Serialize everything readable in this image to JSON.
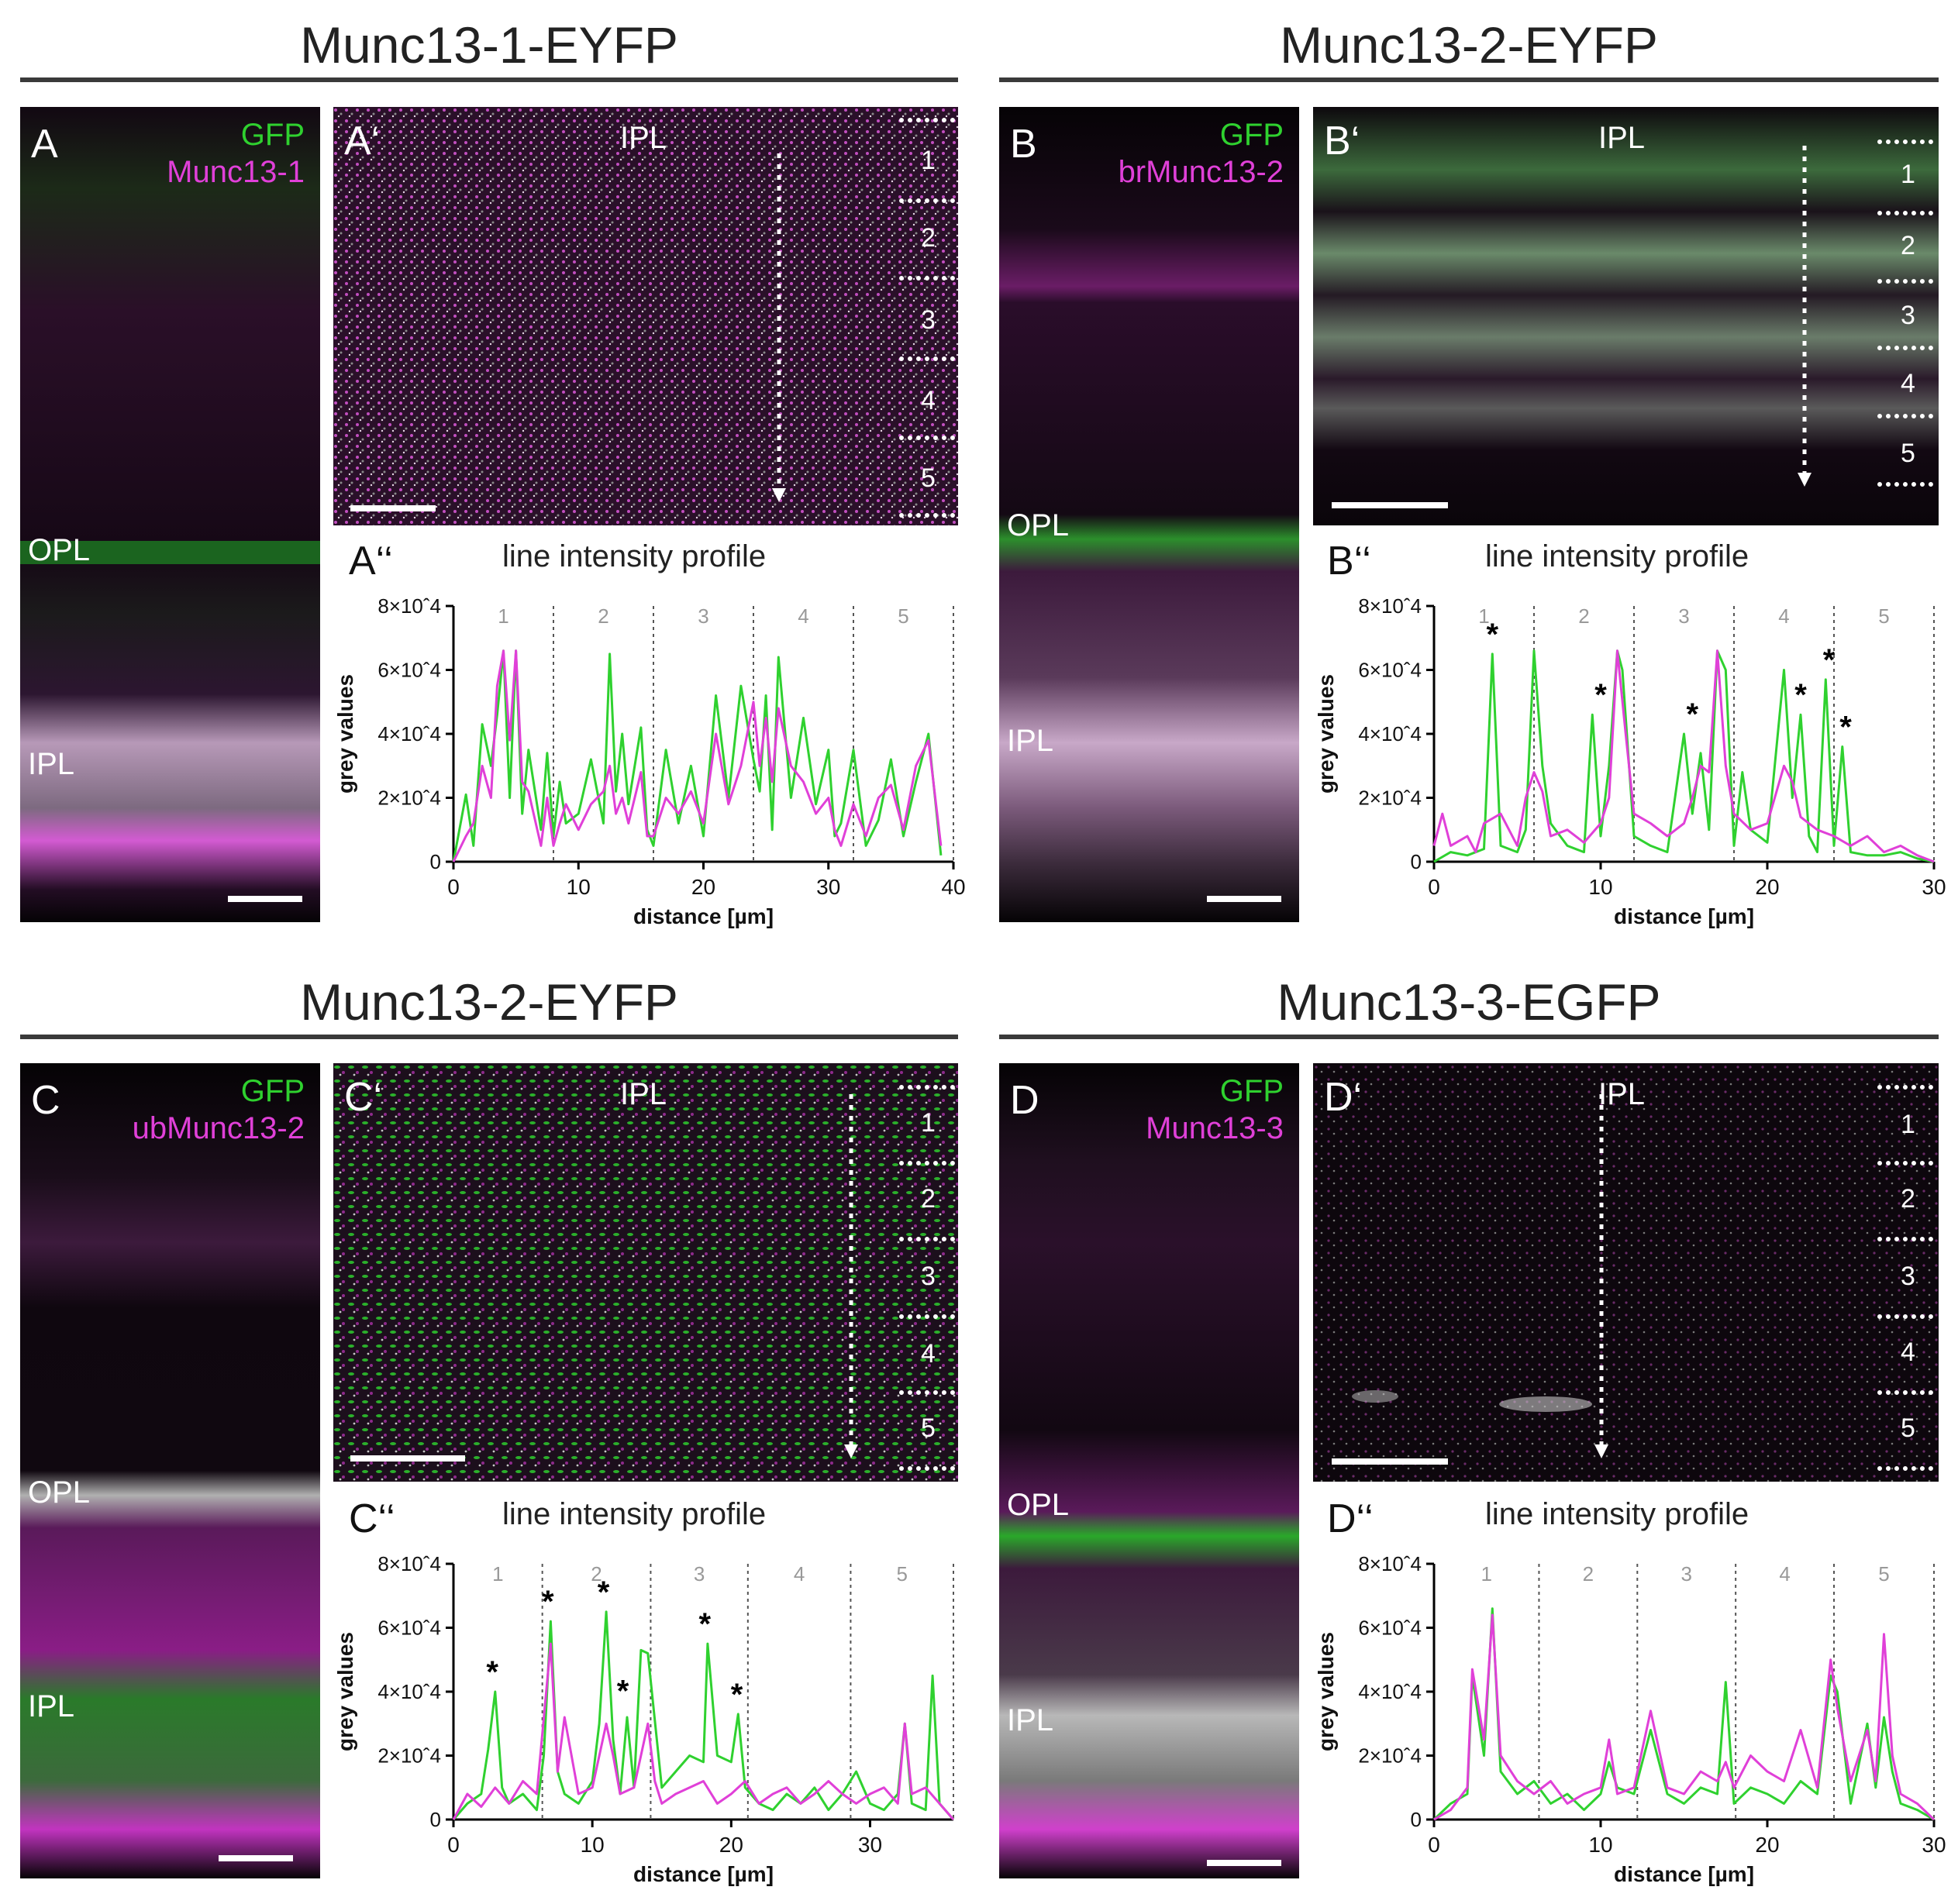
{
  "sections": {
    "top_left": "Munc13-1-EYFP",
    "top_right": "Munc13-2-EYFP",
    "bottom_left": "Munc13-2-EYFP",
    "bottom_right": "Munc13-3-EGFP"
  },
  "panels": {
    "A": {
      "label": "A",
      "green": "GFP",
      "magenta": "Munc13-1",
      "opl": "OPL",
      "ipl": "IPL"
    },
    "A1": {
      "label": "A‘",
      "ipl": "IPL",
      "bands": [
        "1",
        "2",
        "3",
        "4",
        "5"
      ]
    },
    "A2": {
      "label": "A‘‘",
      "title": "line intensity profile"
    },
    "B": {
      "label": "B",
      "green": "GFP",
      "magenta": "brMunc13-2",
      "opl": "OPL",
      "ipl": "IPL"
    },
    "B1": {
      "label": "B‘",
      "ipl": "IPL",
      "bands": [
        "1",
        "2",
        "3",
        "4",
        "5"
      ]
    },
    "B2": {
      "label": "B‘‘",
      "title": "line intensity profile"
    },
    "C": {
      "label": "C",
      "green": "GFP",
      "magenta": "ubMunc13-2",
      "opl": "OPL",
      "ipl": "IPL"
    },
    "C1": {
      "label": "C‘",
      "ipl": "IPL",
      "bands": [
        "1",
        "2",
        "3",
        "4",
        "5"
      ]
    },
    "C2": {
      "label": "C‘‘",
      "title": "line intensity profile"
    },
    "D": {
      "label": "D",
      "green": "GFP",
      "magenta": "Munc13-3",
      "opl": "OPL",
      "ipl": "IPL"
    },
    "D1": {
      "label": "D‘",
      "ipl": "IPL",
      "bands": [
        "1",
        "2",
        "3",
        "4",
        "5"
      ]
    },
    "D2": {
      "label": "D‘‘",
      "title": "line intensity profile"
    }
  },
  "colors": {
    "green": "#2fd12f",
    "magenta": "#e040d8",
    "grid": "#555555",
    "band_label": "#999999"
  },
  "chart_data": [
    {
      "id": "A2",
      "type": "line",
      "xlabel": "distance [µm]",
      "ylabel": "grey values",
      "xlim": [
        0,
        40
      ],
      "ylim": [
        0,
        80000
      ],
      "xticks": [
        0,
        10,
        20,
        30,
        40
      ],
      "yticks": [
        0,
        20000,
        40000,
        60000,
        80000
      ],
      "ytick_labels": [
        "0",
        "2×10ˆ4",
        "4×10ˆ4",
        "6×10ˆ4",
        "8×10ˆ4"
      ],
      "bands": [
        "1",
        "2",
        "3",
        "4",
        "5"
      ],
      "band_bounds": [
        8,
        16,
        24,
        32,
        40
      ],
      "series": [
        {
          "color": "green",
          "x": [
            0,
            1,
            1.6,
            2.3,
            3,
            3.5,
            4,
            4.5,
            5,
            5.5,
            6,
            7,
            7.5,
            8,
            8.5,
            9,
            10,
            11,
            12,
            12.5,
            13,
            13.5,
            14,
            15,
            15.5,
            16,
            17,
            18,
            19,
            20,
            21,
            22,
            23,
            24,
            24.5,
            25,
            25.5,
            26,
            27,
            28,
            29,
            30,
            30.5,
            31,
            32,
            33,
            34,
            35,
            36,
            37,
            38,
            39
          ],
          "y": [
            0,
            21000,
            5000,
            43000,
            30000,
            46000,
            66000,
            20000,
            66000,
            15000,
            35000,
            10000,
            34000,
            8000,
            25000,
            12000,
            15000,
            32000,
            12000,
            65000,
            22000,
            40000,
            18000,
            42000,
            10000,
            5000,
            35000,
            12000,
            30000,
            8000,
            52000,
            20000,
            55000,
            32000,
            22000,
            52000,
            10000,
            64000,
            20000,
            45000,
            18000,
            35000,
            8000,
            12000,
            35000,
            5000,
            13000,
            32000,
            8000,
            25000,
            40000,
            2000
          ]
        },
        {
          "color": "magenta",
          "x": [
            0,
            1,
            1.6,
            2.3,
            3,
            3.5,
            4,
            4.5,
            5,
            5.5,
            6,
            7,
            7.5,
            8,
            8.5,
            9,
            10,
            11,
            12,
            12.5,
            13,
            13.5,
            14,
            15,
            15.5,
            16,
            17,
            18,
            19,
            20,
            21,
            22,
            23,
            24,
            24.5,
            25,
            25.5,
            26,
            27,
            28,
            29,
            30,
            30.5,
            31,
            32,
            33,
            34,
            35,
            36,
            37,
            38,
            39
          ],
          "y": [
            0,
            8000,
            12000,
            30000,
            20000,
            55000,
            66000,
            38000,
            66000,
            25000,
            22000,
            5000,
            20000,
            5000,
            12000,
            18000,
            10000,
            18000,
            22000,
            30000,
            15000,
            20000,
            12000,
            28000,
            8000,
            8000,
            20000,
            15000,
            22000,
            12000,
            40000,
            18000,
            30000,
            50000,
            30000,
            45000,
            25000,
            48000,
            30000,
            25000,
            15000,
            20000,
            10000,
            5000,
            18000,
            8000,
            20000,
            24000,
            10000,
            30000,
            38000,
            5000
          ]
        }
      ]
    },
    {
      "id": "B2",
      "type": "line",
      "xlabel": "distance [µm]",
      "ylabel": "grey values",
      "xlim": [
        0,
        30
      ],
      "ylim": [
        0,
        80000
      ],
      "xticks": [
        0,
        10,
        20,
        30
      ],
      "yticks": [
        0,
        20000,
        40000,
        60000,
        80000
      ],
      "ytick_labels": [
        "0",
        "2×10ˆ4",
        "4×10ˆ4",
        "6×10ˆ4",
        "8×10ˆ4"
      ],
      "bands": [
        "1",
        "2",
        "3",
        "4",
        "5"
      ],
      "band_bounds": [
        6,
        12,
        18,
        24,
        30
      ],
      "series": [
        {
          "color": "green",
          "x": [
            0,
            1,
            2,
            3,
            3.5,
            4,
            5,
            5.5,
            6,
            6.5,
            7,
            8,
            9,
            9.5,
            10,
            10.5,
            11,
            11.3,
            12,
            13,
            14,
            15,
            15.5,
            16,
            16.5,
            17,
            17.5,
            18,
            18.5,
            19,
            20,
            21,
            21.5,
            22,
            22.5,
            23,
            23.5,
            24,
            24.5,
            25,
            26,
            27,
            28,
            29,
            30
          ],
          "y": [
            0,
            3000,
            2000,
            4000,
            65000,
            5000,
            3000,
            10000,
            66000,
            30000,
            12000,
            5000,
            3000,
            46000,
            8000,
            30000,
            66000,
            60000,
            8000,
            5000,
            3000,
            40000,
            15000,
            34000,
            10000,
            66000,
            60000,
            5000,
            28000,
            10000,
            6000,
            60000,
            20000,
            46000,
            8000,
            3000,
            57000,
            5000,
            36000,
            3000,
            2000,
            2000,
            3000,
            1000,
            0
          ]
        },
        {
          "color": "magenta",
          "x": [
            0,
            0.5,
            1,
            2,
            2.5,
            3,
            4,
            5,
            5.5,
            6,
            6.5,
            7,
            8,
            9,
            10,
            10.5,
            11,
            11.5,
            12,
            13,
            14,
            15,
            15.5,
            16,
            16.5,
            17,
            17.5,
            18,
            19,
            20,
            21,
            21.5,
            22,
            23,
            24,
            25,
            26,
            27,
            28,
            29,
            30
          ],
          "y": [
            5000,
            15000,
            5000,
            8000,
            3000,
            12000,
            15000,
            5000,
            20000,
            28000,
            22000,
            8000,
            10000,
            6000,
            12000,
            20000,
            66000,
            40000,
            15000,
            12000,
            8000,
            12000,
            20000,
            30000,
            28000,
            66000,
            30000,
            15000,
            10000,
            12000,
            30000,
            25000,
            14000,
            10000,
            8000,
            5000,
            8000,
            3000,
            5000,
            2000,
            0
          ]
        }
      ],
      "annotations": [
        {
          "text": "*",
          "x": 3.5,
          "y": 66000
        },
        {
          "text": "*",
          "x": 10,
          "y": 47000
        },
        {
          "text": "*",
          "x": 15.5,
          "y": 41000
        },
        {
          "text": "*",
          "x": 22,
          "y": 47000
        },
        {
          "text": "*",
          "x": 23.7,
          "y": 58000
        },
        {
          "text": "*",
          "x": 24.7,
          "y": 37000
        }
      ]
    },
    {
      "id": "C2",
      "type": "line",
      "xlabel": "distance [µm]",
      "ylabel": "grey values",
      "xlim": [
        0,
        36
      ],
      "ylim": [
        0,
        80000
      ],
      "xticks": [
        0,
        10,
        20,
        30
      ],
      "yticks": [
        0,
        20000,
        40000,
        60000,
        80000
      ],
      "ytick_labels": [
        "0",
        "2×10ˆ4",
        "4×10ˆ4",
        "6×10ˆ4",
        "8×10ˆ4"
      ],
      "bands": [
        "1",
        "2",
        "3",
        "4",
        "5"
      ],
      "band_bounds": [
        6.4,
        14.2,
        21.2,
        28.6,
        36
      ],
      "series": [
        {
          "color": "green",
          "x": [
            0,
            1,
            2,
            2.5,
            3,
            3.5,
            4,
            5,
            6,
            6.5,
            7,
            7.5,
            8,
            9,
            10,
            10.5,
            11,
            11.5,
            12,
            12.5,
            13,
            13.5,
            14,
            15,
            16,
            17,
            18,
            18.3,
            19,
            20,
            20.5,
            21,
            22,
            23,
            24,
            25,
            26,
            27,
            28,
            29,
            30,
            31,
            32,
            32.5,
            33,
            34,
            34.5,
            35,
            36
          ],
          "y": [
            0,
            5000,
            8000,
            22000,
            40000,
            10000,
            5000,
            8000,
            3000,
            20000,
            62000,
            15000,
            8000,
            5000,
            12000,
            30000,
            65000,
            25000,
            8000,
            32000,
            10000,
            53000,
            52000,
            10000,
            15000,
            20000,
            18000,
            55000,
            20000,
            18000,
            33000,
            10000,
            5000,
            3000,
            8000,
            5000,
            10000,
            3000,
            8000,
            15000,
            5000,
            3000,
            8000,
            30000,
            5000,
            3000,
            45000,
            5000,
            0
          ]
        },
        {
          "color": "magenta",
          "x": [
            0,
            1,
            2,
            3,
            4,
            5,
            6,
            7,
            7.5,
            8,
            9,
            10,
            11,
            11.5,
            12,
            13,
            14,
            14.5,
            15,
            16,
            17,
            18,
            19,
            20,
            21,
            22,
            23,
            24,
            25,
            26,
            27,
            28,
            29,
            30,
            31,
            32,
            32.5,
            33,
            34,
            35,
            36
          ],
          "y": [
            0,
            8000,
            4000,
            10000,
            5000,
            12000,
            8000,
            55000,
            15000,
            32000,
            8000,
            10000,
            30000,
            20000,
            8000,
            10000,
            30000,
            12000,
            5000,
            8000,
            10000,
            12000,
            5000,
            8000,
            12000,
            5000,
            8000,
            10000,
            5000,
            8000,
            12000,
            8000,
            5000,
            8000,
            10000,
            5000,
            30000,
            8000,
            10000,
            5000,
            0
          ]
        }
      ],
      "annotations": [
        {
          "text": "*",
          "x": 2.8,
          "y": 41000
        },
        {
          "text": "*",
          "x": 6.8,
          "y": 63000
        },
        {
          "text": "*",
          "x": 10.8,
          "y": 66000
        },
        {
          "text": "*",
          "x": 12.2,
          "y": 35000
        },
        {
          "text": "*",
          "x": 18.1,
          "y": 56000
        },
        {
          "text": "*",
          "x": 20.4,
          "y": 34000
        }
      ]
    },
    {
      "id": "D2",
      "type": "line",
      "xlabel": "distance [µm]",
      "ylabel": "grey values",
      "xlim": [
        0,
        30
      ],
      "ylim": [
        0,
        80000
      ],
      "xticks": [
        0,
        10,
        20,
        30
      ],
      "yticks": [
        0,
        20000,
        40000,
        60000,
        80000
      ],
      "ytick_labels": [
        "0",
        "2×10ˆ4",
        "4×10ˆ4",
        "6×10ˆ4",
        "8×10ˆ4"
      ],
      "bands": [
        "1",
        "2",
        "3",
        "4",
        "5"
      ],
      "band_bounds": [
        6.3,
        12.2,
        18.1,
        24,
        30
      ],
      "series": [
        {
          "color": "green",
          "x": [
            0,
            1,
            2,
            2.3,
            3,
            3.5,
            4,
            5,
            6,
            7,
            8,
            9,
            10,
            10.5,
            11,
            12,
            13,
            14,
            15,
            16,
            17,
            17.5,
            18,
            19,
            20,
            21,
            22,
            23,
            23.8,
            24.2,
            25,
            26,
            26.5,
            27,
            27.5,
            28,
            29,
            30
          ],
          "y": [
            0,
            5000,
            8000,
            45000,
            20000,
            66000,
            15000,
            8000,
            12000,
            5000,
            8000,
            3000,
            8000,
            18000,
            10000,
            8000,
            28000,
            8000,
            5000,
            10000,
            8000,
            43000,
            5000,
            10000,
            8000,
            5000,
            12000,
            8000,
            45000,
            40000,
            5000,
            30000,
            10000,
            32000,
            15000,
            5000,
            3000,
            0
          ]
        },
        {
          "color": "magenta",
          "x": [
            0,
            1,
            2,
            2.3,
            3,
            3.5,
            4,
            5,
            6,
            7,
            8,
            9,
            10,
            10.5,
            11,
            12,
            13,
            14,
            15,
            16,
            17,
            17.5,
            18,
            19,
            20,
            21,
            22,
            23,
            23.8,
            24.2,
            25,
            26,
            26.5,
            27,
            27.5,
            28,
            29,
            30
          ],
          "y": [
            0,
            3000,
            10000,
            47000,
            25000,
            64000,
            20000,
            12000,
            8000,
            12000,
            5000,
            8000,
            10000,
            25000,
            8000,
            10000,
            34000,
            10000,
            8000,
            15000,
            12000,
            18000,
            10000,
            20000,
            15000,
            12000,
            28000,
            10000,
            50000,
            35000,
            12000,
            28000,
            12000,
            58000,
            20000,
            8000,
            5000,
            0
          ]
        }
      ]
    }
  ]
}
